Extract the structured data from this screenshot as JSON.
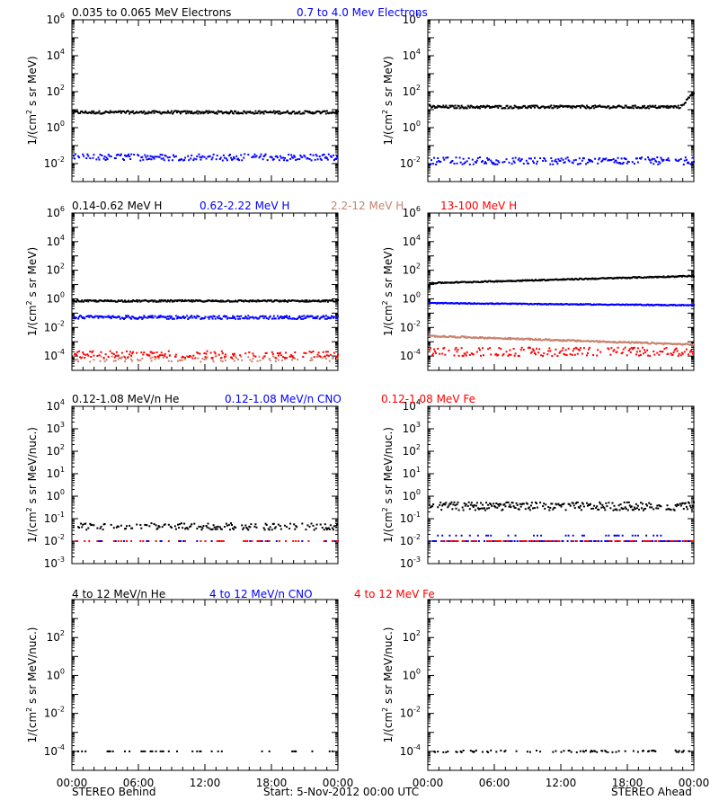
{
  "colors": {
    "black": "#000000",
    "blue": "#0000ff",
    "red": "#ff0000",
    "tan": "#c8826e",
    "magenta": "#ff00ff"
  },
  "legends": [
    {
      "items": [
        {
          "text": "0.035 to 0.065 MeV Electrons",
          "color": "#000000"
        },
        {
          "text": "0.7 to 4.0 Mev Electrons",
          "color": "#0000ff"
        }
      ]
    },
    {
      "items": [
        {
          "text": "0.14-0.62 MeV H",
          "color": "#000000"
        },
        {
          "text": "0.62-2.22 MeV H",
          "color": "#0000ff"
        },
        {
          "text": "2.2-12 MeV H",
          "color": "#c8826e"
        },
        {
          "text": "13-100 MeV H",
          "color": "#ff0000"
        }
      ]
    },
    {
      "items": [
        {
          "text": "0.12-1.08 MeV/n He",
          "color": "#000000"
        },
        {
          "text": "0.12-1.08 MeV/n CNO",
          "color": "#0000ff"
        },
        {
          "text": "0.12-1.08 MeV Fe",
          "color": "#ff0000"
        }
      ]
    },
    {
      "items": [
        {
          "text": "4 to 12 MeV/n He",
          "color": "#000000"
        },
        {
          "text": "4 to 12 MeV/n CNO",
          "color": "#0000ff"
        },
        {
          "text": "4 to 12 MeV Fe",
          "color": "#ff0000"
        }
      ]
    }
  ],
  "footer": {
    "left": "STEREO Behind",
    "center": "Start:  5-Nov-2012 00:00 UTC",
    "right": "STEREO Ahead"
  },
  "chart_data": [
    {
      "id": "behind-electrons",
      "type": "scatter",
      "ylabel": "1/(cm2 s sr MeV)",
      "yscale": "log",
      "ylim_exp": [
        -3,
        6
      ],
      "ytick_exps": [
        -2,
        0,
        2,
        4,
        6
      ],
      "xlim_hours": [
        0,
        24
      ],
      "xtick_labels": [
        "00:00",
        "06:00",
        "12:00",
        "18:00",
        "00:00"
      ],
      "show_xtick_labels": false,
      "series": [
        {
          "color": "#000000",
          "level_exp": 0.85,
          "noise": 0.08,
          "density": 1.0
        },
        {
          "color": "#0000ff",
          "level_exp": -1.65,
          "noise": 0.18,
          "density": 0.7
        }
      ]
    },
    {
      "id": "ahead-electrons",
      "type": "scatter",
      "ylabel": "1/(cm2 s sr MeV)",
      "yscale": "log",
      "ylim_exp": [
        -3,
        6
      ],
      "ytick_exps": [
        -2,
        0,
        2,
        4,
        6
      ],
      "xlim_hours": [
        0,
        24
      ],
      "xtick_labels": [
        "00:00",
        "06:00",
        "12:00",
        "18:00",
        "00:00"
      ],
      "show_xtick_labels": false,
      "series": [
        {
          "color": "#000000",
          "level_exp": 1.15,
          "noise": 0.08,
          "density": 1.0,
          "end_rise": 0.8
        },
        {
          "color": "#0000ff",
          "level_exp": -1.85,
          "noise": 0.2,
          "density": 0.7
        }
      ]
    },
    {
      "id": "behind-protons",
      "type": "scatter",
      "ylabel": "1/(cm2 s sr MeV)",
      "yscale": "log",
      "ylim_exp": [
        -5,
        6
      ],
      "ytick_exps": [
        -4,
        -2,
        0,
        2,
        4,
        6
      ],
      "xlim_hours": [
        0,
        24
      ],
      "xtick_labels": [
        "00:00",
        "06:00",
        "12:00",
        "18:00",
        "00:00"
      ],
      "show_xtick_labels": false,
      "series": [
        {
          "color": "#000000",
          "level_exp": -0.15,
          "noise": 0.06,
          "density": 1.0
        },
        {
          "color": "#0000ff",
          "level_exp": -1.3,
          "noise": 0.12,
          "density": 0.9
        },
        {
          "color": "#c8826e",
          "level_exp": -4.2,
          "noise": 0.2,
          "density": 0.4
        },
        {
          "color": "#ff0000",
          "level_exp": -3.9,
          "noise": 0.25,
          "density": 0.5
        }
      ]
    },
    {
      "id": "ahead-protons",
      "type": "scatter",
      "ylabel": "1/(cm2 s sr MeV)",
      "yscale": "log",
      "ylim_exp": [
        -5,
        6
      ],
      "ytick_exps": [
        -4,
        -2,
        0,
        2,
        4,
        6
      ],
      "xlim_hours": [
        0,
        24
      ],
      "xtick_labels": [
        "00:00",
        "06:00",
        "12:00",
        "18:00",
        "00:00"
      ],
      "show_xtick_labels": false,
      "series": [
        {
          "color": "#000000",
          "level_exp": 1.1,
          "noise": 0.04,
          "density": 1.0,
          "trend": 0.5
        },
        {
          "color": "#0000ff",
          "level_exp": -0.3,
          "noise": 0.03,
          "density": 1.0,
          "trend": -0.15
        },
        {
          "color": "#c8826e",
          "level_exp": -2.6,
          "noise": 0.05,
          "density": 1.0,
          "trend": -0.6
        },
        {
          "color": "#ff0000",
          "level_exp": -3.7,
          "noise": 0.3,
          "density": 0.6
        }
      ]
    },
    {
      "id": "behind-ions-low",
      "type": "scatter",
      "ylabel": "1/(cm2 s sr MeV/nuc.)",
      "yscale": "log",
      "ylim_exp": [
        -3,
        4
      ],
      "ytick_exps": [
        -3,
        -2,
        -1,
        0,
        1,
        2,
        3,
        4
      ],
      "xlim_hours": [
        0,
        24
      ],
      "xtick_labels": [
        "00:00",
        "06:00",
        "12:00",
        "18:00",
        "00:00"
      ],
      "show_xtick_labels": false,
      "series": [
        {
          "color": "#000000",
          "level_exp": -1.35,
          "noise": 0.15,
          "density": 0.55
        },
        {
          "color": "#ff0000",
          "level_exp": -2.0,
          "noise": 0.0,
          "density": 0.15
        },
        {
          "color": "#0000ff",
          "level_exp": -2.0,
          "noise": 0.0,
          "density": 0.1
        }
      ]
    },
    {
      "id": "ahead-ions-low",
      "type": "scatter",
      "ylabel": "1/(cm2 s sr MeV/nuc.)",
      "yscale": "log",
      "ylim_exp": [
        -3,
        4
      ],
      "ytick_exps": [
        -3,
        -2,
        -1,
        0,
        1,
        2,
        3,
        4
      ],
      "xlim_hours": [
        0,
        24
      ],
      "xtick_labels": [
        "00:00",
        "06:00",
        "12:00",
        "18:00",
        "00:00"
      ],
      "show_xtick_labels": false,
      "series": [
        {
          "color": "#000000",
          "level_exp": -0.45,
          "noise": 0.18,
          "density": 0.85
        },
        {
          "color": "#0000ff",
          "level_exp": -2.0,
          "noise": 0.0,
          "density": 0.4
        },
        {
          "color": "#ff0000",
          "level_exp": -2.0,
          "noise": 0.0,
          "density": 0.25
        },
        {
          "color": "#0000ff",
          "level_exp": -1.75,
          "noise": 0.0,
          "density": 0.1
        }
      ]
    },
    {
      "id": "behind-ions-high",
      "type": "scatter",
      "ylabel": "1/(cm2 s sr MeV/nuc.)",
      "yscale": "log",
      "ylim_exp": [
        -5,
        4
      ],
      "ytick_exps": [
        -4,
        -2,
        0,
        2
      ],
      "xlim_hours": [
        0,
        24
      ],
      "xtick_labels": [
        "00:00",
        "06:00",
        "12:00",
        "18:00",
        "00:00"
      ],
      "show_xtick_labels": true,
      "series": [
        {
          "color": "#000000",
          "level_exp": -4.0,
          "noise": 0.0,
          "density": 0.12
        }
      ]
    },
    {
      "id": "ahead-ions-high",
      "type": "scatter",
      "ylabel": "1/(cm2 s sr MeV/nuc.)",
      "yscale": "log",
      "ylim_exp": [
        -5,
        4
      ],
      "ytick_exps": [
        -4,
        -2,
        0,
        2
      ],
      "xlim_hours": [
        0,
        24
      ],
      "xtick_labels": [
        "00:00",
        "06:00",
        "12:00",
        "18:00",
        "00:00"
      ],
      "show_xtick_labels": true,
      "series": [
        {
          "color": "#000000",
          "level_exp": -4.0,
          "noise": 0.05,
          "density": 0.25
        }
      ]
    }
  ]
}
